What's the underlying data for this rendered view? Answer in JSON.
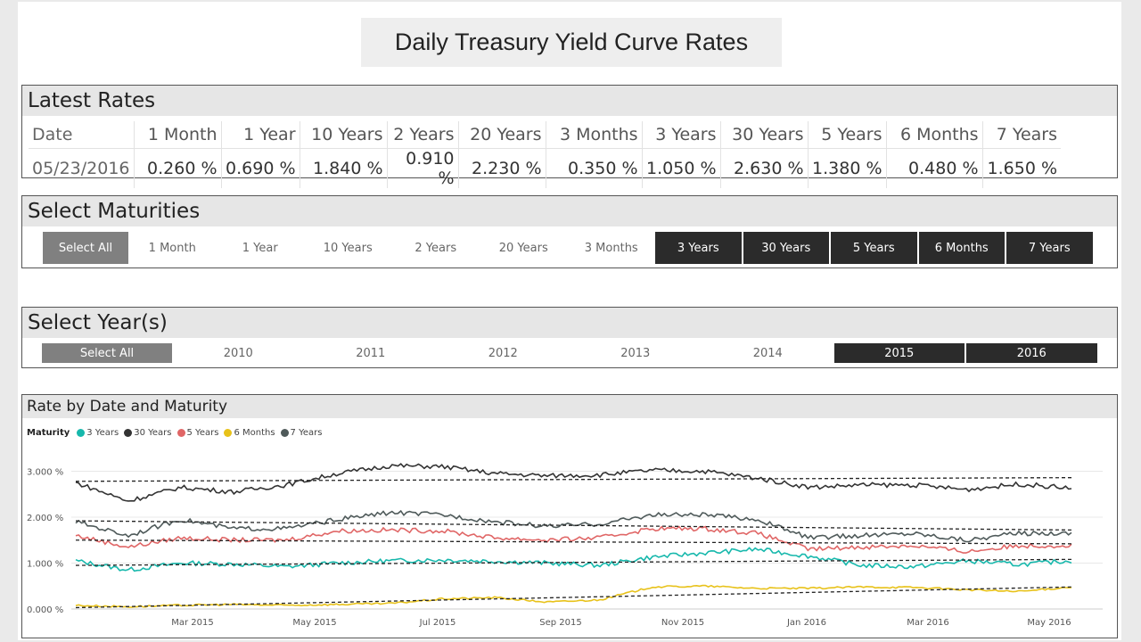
{
  "title": "Daily Treasury Yield Curve Rates",
  "latest_rates": {
    "header": "Latest Rates",
    "columns": [
      "Date",
      "1 Month",
      "1 Year",
      "10 Years",
      "2 Years",
      "20 Years",
      "3 Months",
      "3 Years",
      "30 Years",
      "5 Years",
      "6 Months",
      "7 Years"
    ],
    "row": [
      "05/23/2016",
      "0.260 %",
      "0.690 %",
      "1.840 %",
      "0.910 %",
      "2.230 %",
      "0.350 %",
      "1.050 %",
      "2.630 %",
      "1.380 %",
      "0.480 %",
      "1.650 %"
    ]
  },
  "maturities": {
    "header": "Select Maturities",
    "select_all": "Select All",
    "items": [
      {
        "label": "1 Month",
        "selected": false
      },
      {
        "label": "1 Year",
        "selected": false
      },
      {
        "label": "10 Years",
        "selected": false
      },
      {
        "label": "2 Years",
        "selected": false
      },
      {
        "label": "20 Years",
        "selected": false
      },
      {
        "label": "3 Months",
        "selected": false
      },
      {
        "label": "3 Years",
        "selected": true
      },
      {
        "label": "30 Years",
        "selected": true
      },
      {
        "label": "5 Years",
        "selected": true
      },
      {
        "label": "6 Months",
        "selected": true
      },
      {
        "label": "7 Years",
        "selected": true
      }
    ]
  },
  "years": {
    "header": "Select Year(s)",
    "select_all": "Select All",
    "items": [
      {
        "label": "2010",
        "selected": false
      },
      {
        "label": "2011",
        "selected": false
      },
      {
        "label": "2012",
        "selected": false
      },
      {
        "label": "2013",
        "selected": false
      },
      {
        "label": "2014",
        "selected": false
      },
      {
        "label": "2015",
        "selected": true
      },
      {
        "label": "2016",
        "selected": true
      }
    ]
  },
  "chart_panel": {
    "header": "Rate by Date and Maturity",
    "legend_title": "Maturity"
  },
  "chart_data": {
    "type": "line",
    "title": "Rate by Date and Maturity",
    "x_range": [
      "2015-01-02",
      "2016-05-23"
    ],
    "x_ticks": [
      "Mar 2015",
      "May 2015",
      "Jul 2015",
      "Sep 2015",
      "Nov 2015",
      "Jan 2016",
      "Mar 2016",
      "May 2016"
    ],
    "ylim": [
      0,
      3.3
    ],
    "y_ticks": [
      "0.000 %",
      "1.000 %",
      "2.000 %",
      "3.000 %"
    ],
    "trend_lines": "dashed",
    "grid": true,
    "legend_position": "top-left",
    "series": [
      {
        "name": "3 Years",
        "color": "#17b8ac",
        "trend": [
          0.95,
          1.08
        ],
        "values": [
          1.05,
          0.85,
          1.0,
          0.98,
          0.92,
          1.0,
          1.05,
          1.07,
          1.04,
          1.0,
          0.95,
          1.13,
          1.22,
          1.3,
          1.15,
          0.95,
          0.92,
          1.05,
          0.97,
          1.05
        ]
      },
      {
        "name": "30 Years",
        "color": "#333333",
        "trend": [
          2.78,
          2.86
        ],
        "values": [
          2.75,
          2.35,
          2.65,
          2.55,
          2.7,
          2.95,
          3.12,
          3.1,
          2.95,
          2.9,
          2.92,
          3.02,
          3.0,
          2.85,
          2.65,
          2.7,
          2.7,
          2.6,
          2.72,
          2.63
        ]
      },
      {
        "name": "5 Years",
        "color": "#e06666",
        "trend": [
          1.5,
          1.42
        ],
        "values": [
          1.6,
          1.35,
          1.55,
          1.5,
          1.5,
          1.7,
          1.72,
          1.7,
          1.55,
          1.5,
          1.55,
          1.75,
          1.75,
          1.65,
          1.3,
          1.35,
          1.38,
          1.25,
          1.38,
          1.38
        ]
      },
      {
        "name": "6 Months",
        "color": "#e8c21a",
        "trend": [
          0.03,
          0.48
        ],
        "values": [
          0.08,
          0.05,
          0.08,
          0.1,
          0.08,
          0.1,
          0.12,
          0.22,
          0.25,
          0.15,
          0.2,
          0.48,
          0.5,
          0.45,
          0.45,
          0.48,
          0.47,
          0.42,
          0.38,
          0.48
        ]
      },
      {
        "name": "7 Years",
        "color": "#4f5a5a",
        "trend": [
          1.92,
          1.72
        ],
        "values": [
          1.9,
          1.6,
          1.95,
          1.75,
          1.75,
          1.95,
          2.1,
          2.05,
          1.9,
          1.8,
          1.85,
          2.05,
          2.05,
          1.95,
          1.55,
          1.6,
          1.65,
          1.5,
          1.65,
          1.65
        ]
      }
    ]
  }
}
